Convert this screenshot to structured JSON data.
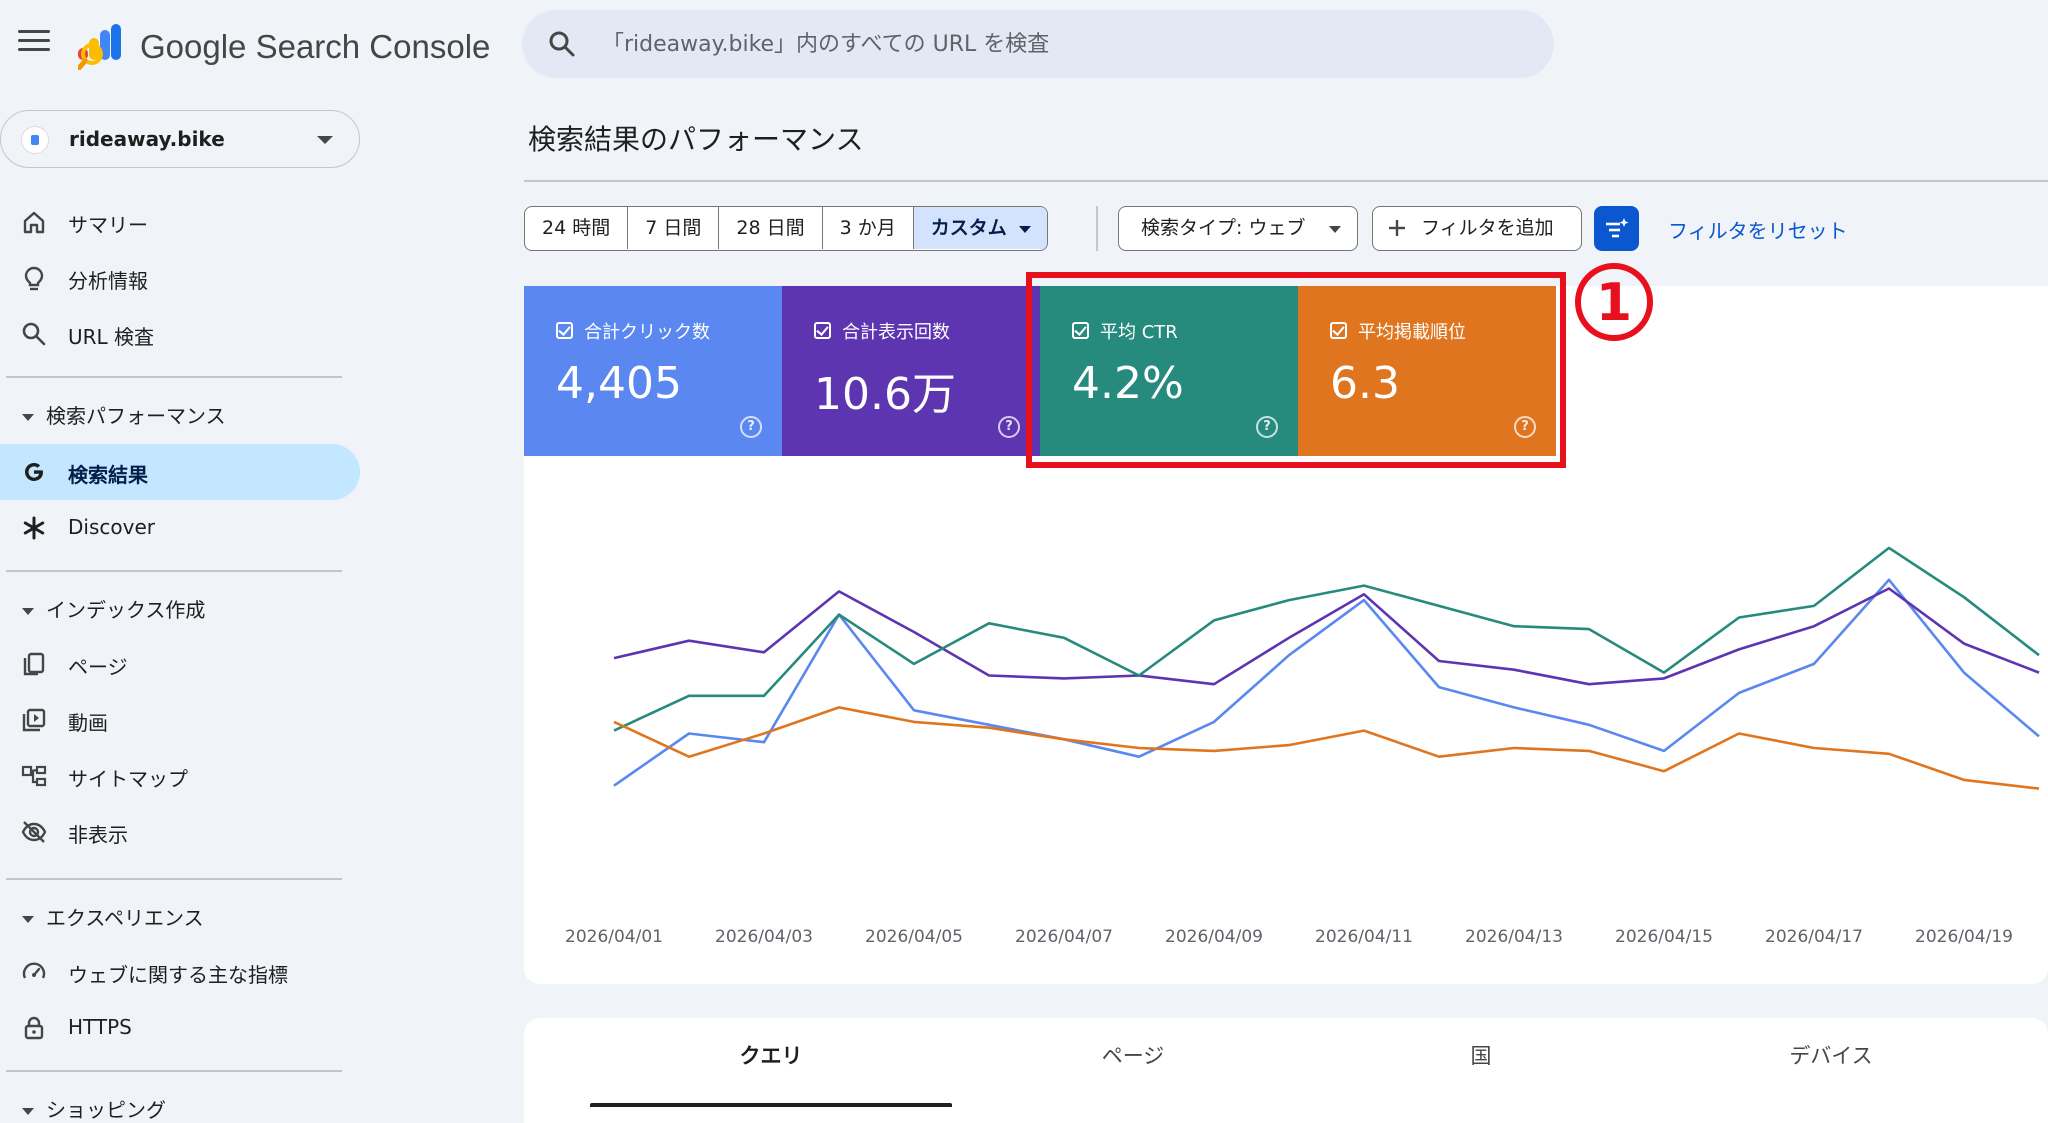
{
  "app": {
    "title": "Google Search Console",
    "search_placeholder": "「rideaway.bike」内のすべての URL を検査"
  },
  "property": {
    "name": "rideaway.bike"
  },
  "sidebar": {
    "top_items": [
      {
        "label": "サマリー",
        "icon": "home-icon"
      },
      {
        "label": "分析情報",
        "icon": "lightbulb-icon"
      },
      {
        "label": "URL 検査",
        "icon": "search-icon"
      }
    ],
    "sections": {
      "performance": {
        "label": "検索パフォーマンス",
        "items": [
          {
            "label": "検索結果",
            "icon": "google-g-icon",
            "active": true
          },
          {
            "label": "Discover",
            "icon": "asterisk-icon"
          }
        ]
      },
      "indexing": {
        "label": "インデックス作成",
        "items": [
          {
            "label": "ページ",
            "icon": "pages-icon"
          },
          {
            "label": "動画",
            "icon": "video-icon"
          },
          {
            "label": "サイトマップ",
            "icon": "sitemap-icon"
          },
          {
            "label": "非表示",
            "icon": "eye-off-icon"
          }
        ]
      },
      "experience": {
        "label": "エクスペリエンス",
        "items": [
          {
            "label": "ウェブに関する主な指標",
            "icon": "gauge-icon"
          },
          {
            "label": "HTTPS",
            "icon": "lock-icon"
          }
        ]
      },
      "shopping": {
        "label": "ショッピング"
      }
    }
  },
  "page": {
    "title": "検索結果のパフォーマンス"
  },
  "toolbar": {
    "ranges": [
      "24 時間",
      "7 日間",
      "28 日間",
      "3 か月",
      "カスタム"
    ],
    "selected_range": "カスタム",
    "search_type": "検索タイプ: ウェブ",
    "add_filter": "フィルタを追加",
    "reset": "フィルタをリセット"
  },
  "metrics": {
    "clicks": {
      "label": "合計クリック数",
      "value": "4,405",
      "color": "#5a88f0"
    },
    "impressions": {
      "label": "合計表示回数",
      "value": "10.6万",
      "color": "#5e35b1"
    },
    "ctr": {
      "label": "平均 CTR",
      "value": "4.2%",
      "color": "#268a7d"
    },
    "position": {
      "label": "平均掲載順位",
      "value": "6.3",
      "color": "#e07520"
    }
  },
  "annotation": {
    "number": "1",
    "color": "#e8101d"
  },
  "chart_data": {
    "type": "line",
    "x": [
      "2026/04/01",
      "2026/04/02",
      "2026/04/03",
      "2026/04/04",
      "2026/04/05",
      "2026/04/06",
      "2026/04/07",
      "2026/04/08",
      "2026/04/09",
      "2026/04/10",
      "2026/04/11",
      "2026/04/12",
      "2026/04/13",
      "2026/04/14",
      "2026/04/15",
      "2026/04/16",
      "2026/04/17",
      "2026/04/18",
      "2026/04/19",
      "2026/04/20"
    ],
    "x_tick_labels": [
      "2026/04/01",
      "2026/04/03",
      "2026/04/05",
      "2026/04/07",
      "2026/04/09",
      "2026/04/11",
      "2026/04/13",
      "2026/04/15",
      "2026/04/17",
      "2026/04/19"
    ],
    "series": [
      {
        "metric": "clicks",
        "color": "#5a88f0",
        "values": [
          0.07,
          0.25,
          0.22,
          0.66,
          0.33,
          0.28,
          0.23,
          0.17,
          0.29,
          0.52,
          0.71,
          0.41,
          0.34,
          0.28,
          0.19,
          0.39,
          0.49,
          0.78,
          0.46,
          0.24
        ]
      },
      {
        "metric": "impressions",
        "color": "#5e35b1",
        "values": [
          0.51,
          0.57,
          0.53,
          0.74,
          0.6,
          0.45,
          0.44,
          0.45,
          0.42,
          0.58,
          0.73,
          0.5,
          0.47,
          0.42,
          0.44,
          0.54,
          0.62,
          0.75,
          0.56,
          0.46
        ]
      },
      {
        "metric": "ctr",
        "color": "#268a7d",
        "values": [
          0.26,
          0.38,
          0.38,
          0.66,
          0.49,
          0.63,
          0.58,
          0.45,
          0.64,
          0.71,
          0.76,
          0.69,
          0.62,
          0.61,
          0.46,
          0.65,
          0.69,
          0.89,
          0.72,
          0.52
        ]
      },
      {
        "metric": "position",
        "color": "#e07520",
        "values": [
          0.29,
          0.17,
          0.25,
          0.34,
          0.29,
          0.27,
          0.23,
          0.2,
          0.19,
          0.21,
          0.26,
          0.17,
          0.2,
          0.19,
          0.12,
          0.25,
          0.2,
          0.18,
          0.09,
          0.06
        ]
      }
    ],
    "ylim": [
      0,
      1
    ],
    "grid": false,
    "legend": "none"
  },
  "tabs": [
    "クエリ",
    "ページ",
    "国",
    "デバイス"
  ],
  "active_tab": "クエリ"
}
